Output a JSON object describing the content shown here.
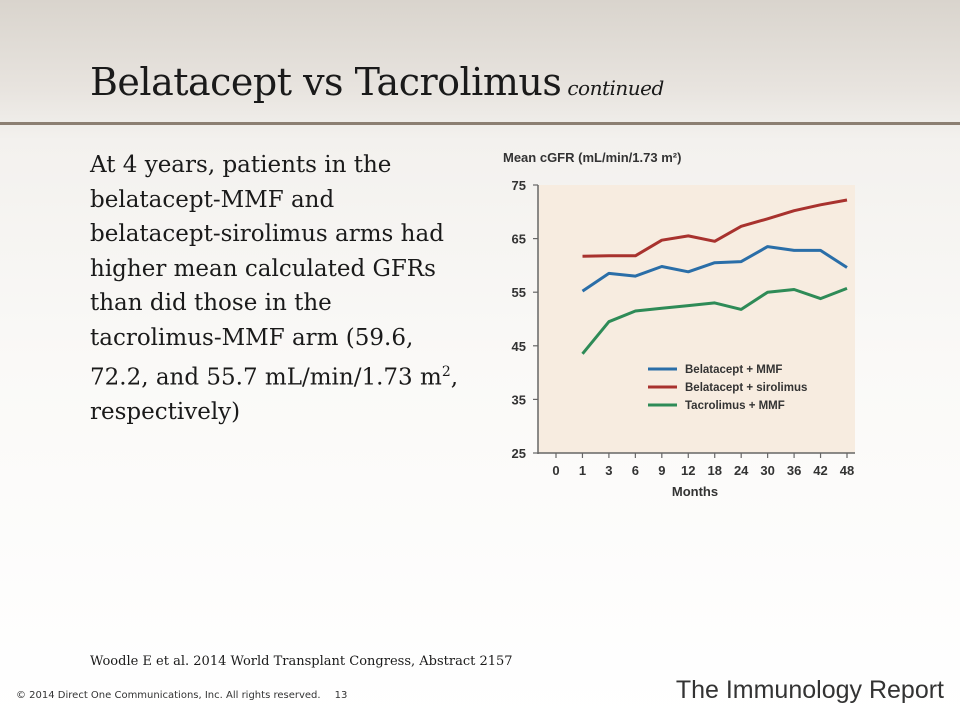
{
  "slide": {
    "title": "Belatacept vs Tacrolimus",
    "title_suffix": "continued",
    "body": "At 4 years, patients in the belatacept-MMF and belatacept-sirolimus arms had higher mean calculated GFRs than did those in the tacrolimus-MMF arm (59.6, 72.2, and 55.7 mL/min/1.73 m",
    "body_superscript": "2",
    "body_end": ", respectively)",
    "citation": "Woodle E et al. 2014 World Transplant Congress, Abstract 2157",
    "copyright": "© 2014 Direct One Communications, Inc. All rights reserved.",
    "page_number": "13",
    "brand": "The Immunology Report",
    "accent_rule_color": "#8c7f72"
  },
  "chart_data": {
    "type": "line",
    "title": "Mean cGFR (mL/min/1.73 m²)",
    "xlabel": "Months",
    "categories": [
      "0",
      "1",
      "3",
      "6",
      "9",
      "12",
      "18",
      "24",
      "30",
      "36",
      "42",
      "48"
    ],
    "y_ticks": [
      25,
      35,
      45,
      55,
      65,
      75
    ],
    "ylim": [
      25,
      75
    ],
    "grid": false,
    "legend_position": "lower-right",
    "plot_background": "#f7ece0",
    "series": [
      {
        "name": "Belatacept + MMF",
        "color": "#2a6ea8",
        "values": [
          null,
          55.2,
          58.5,
          58.0,
          59.8,
          58.8,
          60.5,
          60.7,
          63.5,
          62.8,
          62.8,
          59.6
        ]
      },
      {
        "name": "Belatacept + sirolimus",
        "color": "#a8322e",
        "values": [
          null,
          61.7,
          61.8,
          61.8,
          64.7,
          65.5,
          64.5,
          67.3,
          68.7,
          70.2,
          71.3,
          72.2
        ]
      },
      {
        "name": "Tacrolimus + MMF",
        "color": "#2e8b57",
        "values": [
          null,
          43.5,
          49.5,
          51.5,
          52.0,
          52.5,
          53.0,
          51.8,
          55.0,
          55.5,
          53.8,
          55.7
        ]
      }
    ]
  }
}
